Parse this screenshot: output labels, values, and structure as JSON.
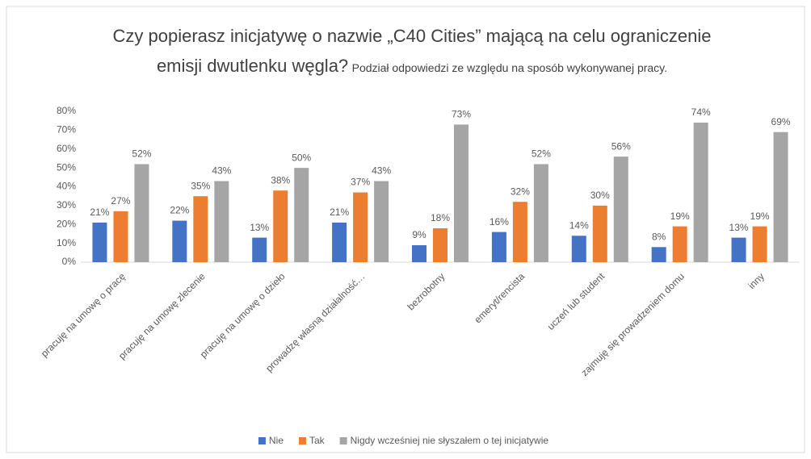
{
  "chart_data": {
    "type": "bar",
    "title": "Czy popierasz inicjatywę o nazwie „C40 Cities” mającą na celu ograniczenie emisji dwutlenku węgla?",
    "subtitle": "Podział odpowiedzi ze względu na sposób wykonywanej pracy.",
    "categories": [
      "pracuję na umowę o pracę",
      "pracuję na umowę zlecenie",
      "pracuję na umowę o dzieło",
      "prowadzę własną działalność…",
      "bezrobotny",
      "emeryt/rencista",
      "uczeń lub student",
      "zajmuję się prowadzeniem domu",
      "inny"
    ],
    "series": [
      {
        "name": "Nie",
        "color": "#4472c4",
        "values": [
          21,
          22,
          13,
          21,
          9,
          16,
          14,
          8,
          13
        ],
        "value_labels": [
          "21%",
          "22%",
          "13%",
          "21%",
          "9%",
          "16%",
          "14%",
          "8%",
          "13%"
        ]
      },
      {
        "name": "Tak",
        "color": "#ed7d31",
        "values": [
          27,
          35,
          38,
          37,
          18,
          32,
          30,
          19,
          19
        ],
        "value_labels": [
          "27%",
          "35%",
          "38%",
          "37%",
          "18%",
          "32%",
          "30%",
          "19%",
          "19%"
        ]
      },
      {
        "name": "Nigdy wcześniej nie słyszałem o tej inicjatywie",
        "color": "#a5a5a5",
        "values": [
          52,
          43,
          50,
          43,
          73,
          52,
          56,
          74,
          69
        ],
        "value_labels": [
          "52%",
          "43%",
          "50%",
          "43%",
          "73%",
          "52%",
          "56%",
          "74%",
          "69%"
        ]
      }
    ],
    "ylim": [
      0,
      80
    ],
    "yticks": [
      {
        "value": 0,
        "label": "0%"
      },
      {
        "value": 10,
        "label": "10%"
      },
      {
        "value": 20,
        "label": "20%"
      },
      {
        "value": 30,
        "label": "30%"
      },
      {
        "value": 40,
        "label": "40%"
      },
      {
        "value": 50,
        "label": "50%"
      },
      {
        "value": 60,
        "label": "60%"
      },
      {
        "value": 70,
        "label": "70%"
      },
      {
        "value": 80,
        "label": "80%"
      }
    ],
    "grid": false,
    "legend": "bottom"
  }
}
